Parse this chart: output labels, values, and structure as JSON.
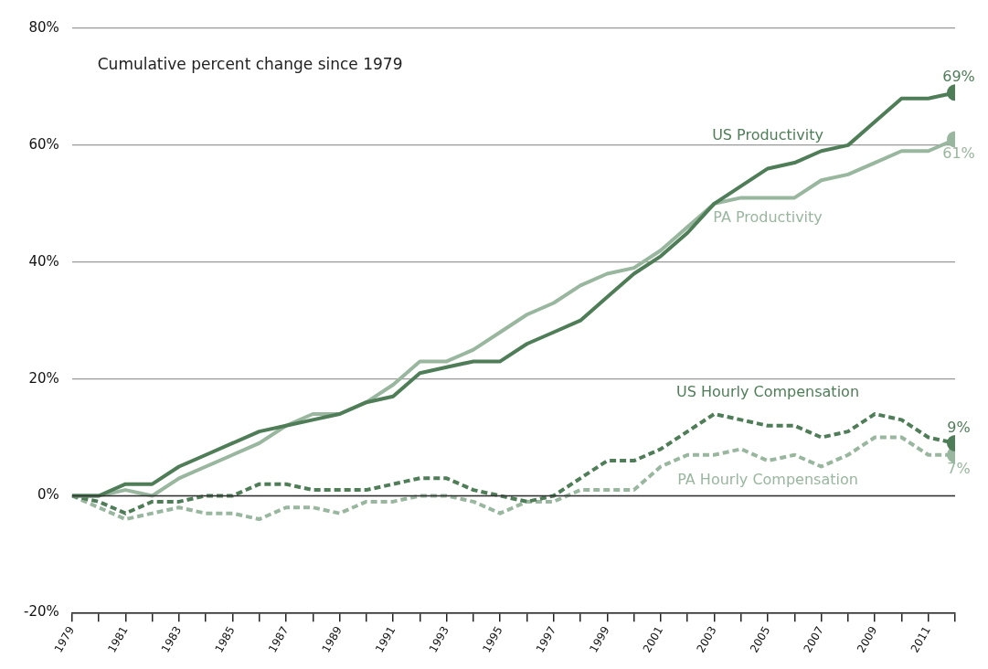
{
  "chart_data": {
    "type": "line",
    "title": "Cumulative percent change since 1979",
    "x": [
      1979,
      1980,
      1981,
      1982,
      1983,
      1984,
      1985,
      1986,
      1987,
      1988,
      1989,
      1990,
      1991,
      1992,
      1993,
      1994,
      1995,
      1996,
      1997,
      1998,
      1999,
      2000,
      2001,
      2002,
      2003,
      2004,
      2005,
      2006,
      2007,
      2008,
      2009,
      2010,
      2011,
      2012
    ],
    "series": [
      {
        "name": "US Productivity",
        "color": "#4f7d58",
        "line_style": "solid",
        "values": [
          0,
          0,
          2,
          2,
          5,
          7,
          9,
          11,
          12,
          13,
          14,
          16,
          17,
          21,
          22,
          23,
          23,
          26,
          28,
          30,
          34,
          38,
          41,
          45,
          50,
          53,
          56,
          57,
          59,
          60,
          64,
          68,
          68,
          69
        ],
        "value_labels": [
          null,
          null,
          null,
          null,
          null,
          null,
          null,
          null,
          null,
          null,
          null,
          null,
          null,
          null,
          null,
          null,
          null,
          null,
          null,
          null,
          null,
          null,
          null,
          null,
          null,
          null,
          null,
          null,
          null,
          null,
          null,
          null,
          null,
          "69%"
        ]
      },
      {
        "name": "PA Productivity",
        "color": "#99b69e",
        "line_style": "solid",
        "values": [
          0,
          0,
          1,
          0,
          3,
          5,
          7,
          9,
          12,
          14,
          14,
          16,
          19,
          23,
          23,
          25,
          28,
          31,
          33,
          36,
          38,
          39,
          42,
          46,
          50,
          51,
          51,
          51,
          54,
          55,
          57,
          59,
          59,
          61
        ],
        "value_labels": [
          null,
          null,
          null,
          null,
          null,
          null,
          null,
          null,
          null,
          null,
          null,
          null,
          null,
          null,
          null,
          null,
          null,
          null,
          null,
          null,
          null,
          null,
          null,
          null,
          null,
          null,
          null,
          null,
          null,
          null,
          null,
          null,
          null,
          "61%"
        ]
      },
      {
        "name": "US Hourly Compensation",
        "color": "#4f7d58",
        "line_style": "dashed",
        "values": [
          0,
          -1,
          -3,
          -1,
          -1,
          0,
          0,
          2,
          2,
          1,
          1,
          1,
          2,
          3,
          3,
          1,
          0,
          -1,
          0,
          3,
          6,
          6,
          8,
          11,
          14,
          13,
          12,
          12,
          10,
          11,
          14,
          13,
          10,
          9
        ],
        "value_labels": [
          null,
          null,
          null,
          null,
          null,
          null,
          null,
          null,
          null,
          null,
          null,
          null,
          null,
          null,
          null,
          null,
          null,
          null,
          null,
          null,
          null,
          null,
          null,
          null,
          null,
          null,
          null,
          null,
          null,
          null,
          null,
          null,
          null,
          "9%"
        ]
      },
      {
        "name": "PA Hourly Compensation",
        "color": "#99b69e",
        "line_style": "dashed",
        "values": [
          0,
          -2,
          -4,
          -3,
          -2,
          -3,
          -3,
          -4,
          -2,
          -2,
          -3,
          -1,
          -1,
          0,
          0,
          -1,
          -3,
          -1,
          -1,
          1,
          1,
          1,
          5,
          7,
          7,
          8,
          6,
          7,
          5,
          7,
          10,
          10,
          7,
          7
        ],
        "value_labels": [
          null,
          null,
          null,
          null,
          null,
          null,
          null,
          null,
          null,
          null,
          null,
          null,
          null,
          null,
          null,
          null,
          null,
          null,
          null,
          null,
          null,
          null,
          null,
          null,
          null,
          null,
          null,
          null,
          null,
          null,
          null,
          null,
          null,
          "7%"
        ]
      }
    ],
    "xlim": [
      1979,
      2012
    ],
    "xticks": [
      1979,
      {
        "value": 1980,
        "label": null
      },
      1981,
      {
        "value": 1982,
        "label": null
      },
      1983,
      {
        "value": 1984,
        "label": null
      },
      1985,
      {
        "value": 1986,
        "label": null
      },
      1987,
      {
        "value": 1988,
        "label": null
      },
      1989,
      {
        "value": 1990,
        "label": null
      },
      1991,
      {
        "value": 1992,
        "label": null
      },
      1993,
      {
        "value": 1994,
        "label": null
      },
      1995,
      {
        "value": 1996,
        "label": null
      },
      1997,
      {
        "value": 1998,
        "label": null
      },
      1999,
      {
        "value": 2000,
        "label": null
      },
      2001,
      {
        "value": 2002,
        "label": null
      },
      2003,
      {
        "value": 2004,
        "label": null
      },
      2005,
      {
        "value": 2006,
        "label": null
      },
      2007,
      {
        "value": 2008,
        "label": null
      },
      2009,
      {
        "value": 2010,
        "label": null
      },
      2011,
      {
        "value": 2012,
        "label": null
      }
    ],
    "ylim": [
      -20,
      80
    ],
    "yticks": [
      {
        "value": -20,
        "label": "-20%"
      },
      {
        "value": 0,
        "label": "0%"
      },
      {
        "value": 20,
        "label": "20%"
      },
      {
        "value": 40,
        "label": "40%"
      },
      {
        "value": 60,
        "label": "60%"
      },
      {
        "value": 80,
        "label": "80%"
      }
    ],
    "grid": "y",
    "legend": false,
    "marker": "none",
    "ref_lines": [
      {
        "axis": "y",
        "value": 0,
        "label": null,
        "color": "#333333"
      }
    ]
  }
}
